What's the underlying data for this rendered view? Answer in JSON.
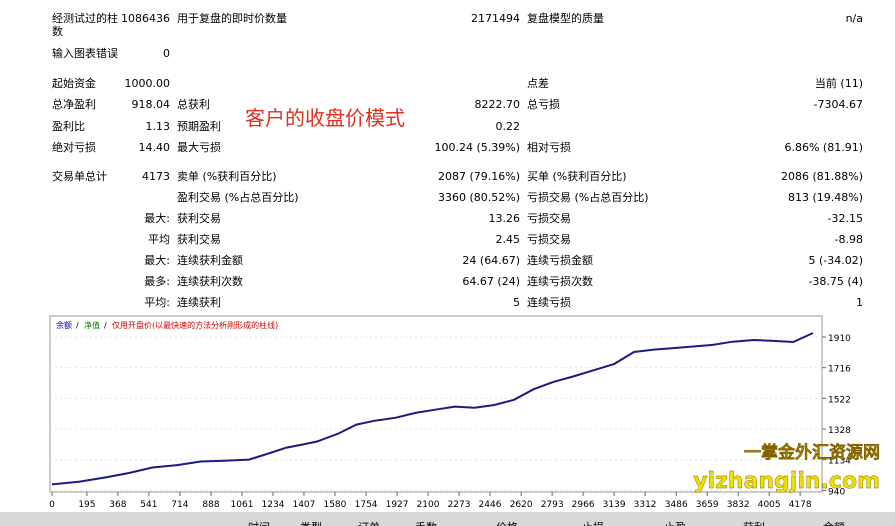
{
  "stats": [
    {
      "l1": "经测试过的柱数",
      "v1": "1086436",
      "l2": "用于复盘的即时价数量",
      "v2": "2171494",
      "l3": "复盘模型的质量",
      "v3": "n/a"
    },
    {
      "l1": "输入图表错误",
      "v1": "0"
    },
    {
      "l1": "起始资金",
      "v1": "1000.00",
      "l3": "点差",
      "v3": "当前 (11)"
    },
    {
      "l1": "总净盈利",
      "v1": "918.04",
      "l2": "总获利",
      "v2": "8222.70",
      "l3": "总亏损",
      "v3": "-7304.67"
    },
    {
      "l1": "盈利比",
      "v1": "1.13",
      "l2": "预期盈利",
      "v2": "0.22"
    },
    {
      "l1": "绝对亏损",
      "v1": "14.40",
      "l2": "最大亏损",
      "v2": "100.24 (5.39%)",
      "l3": "相对亏损",
      "v3": "6.86% (81.91)"
    },
    {
      "l1": "交易单总计",
      "v1": "4173",
      "l2": "卖单 (%获利百分比)",
      "v2": "2087 (79.16%)",
      "l3": "买单 (%获利百分比)",
      "v3": "2086 (81.88%)"
    },
    {
      "l2": "盈利交易 (%占总百分比)",
      "v2": "3360 (80.52%)",
      "l3": "亏损交易 (%占总百分比)",
      "v3": "813 (19.48%)"
    },
    {
      "l1": "最大:",
      "l2": "获利交易",
      "v2": "13.26",
      "l3": "亏损交易",
      "v3": "-32.15"
    },
    {
      "l1": "平均",
      "l2": "获利交易",
      "v2": "2.45",
      "l3": "亏损交易",
      "v3": "-8.98"
    },
    {
      "l1": "最大:",
      "l2": "连续获利金额",
      "v2": "24 (64.67)",
      "l3": "连续亏损金额",
      "v3": "5 (-34.02)"
    },
    {
      "l1": "最多:",
      "l2": "连续获利次数",
      "v2": "64.67 (24)",
      "l3": "连续亏损次数",
      "v3": "-38.75 (4)"
    },
    {
      "l1": "平均:",
      "l2": "连续获利",
      "v2": "5",
      "l3": "连续亏损",
      "v3": "1"
    }
  ],
  "annotation": "客户的收盘价模式",
  "chart_data": {
    "type": "line",
    "legend_items": [
      {
        "text": "余额",
        "color": "#0000c0"
      },
      {
        "text": "净值",
        "color": "#008000"
      },
      {
        "text": "仅用开盘价(以最快速的方法分析刚形成的柱线)",
        "color": "#d00000"
      }
    ],
    "x": [
      0,
      150,
      300,
      430,
      560,
      700,
      830,
      960,
      1100,
      1200,
      1310,
      1400,
      1480,
      1600,
      1700,
      1800,
      1920,
      2030,
      2140,
      2250,
      2360,
      2470,
      2580,
      2690,
      2800,
      2910,
      3030,
      3140,
      3250,
      3360,
      3470,
      3580,
      3690,
      3800,
      3920,
      4030,
      4140,
      4250
    ],
    "series": [
      {
        "name": "余额",
        "color": "#1c1c80",
        "values": [
          978,
          995,
          1022,
          1050,
          1085,
          1100,
          1123,
          1128,
          1135,
          1170,
          1211,
          1230,
          1249,
          1300,
          1356,
          1380,
          1400,
          1430,
          1450,
          1470,
          1463,
          1480,
          1513,
          1580,
          1626,
          1660,
          1702,
          1740,
          1815,
          1830,
          1840,
          1850,
          1860,
          1880,
          1891,
          1885,
          1878,
          1935
        ]
      }
    ],
    "xlim": [
      0,
      4300
    ],
    "ylim": [
      930,
      2030
    ],
    "xticks": [
      0,
      195,
      368,
      541,
      714,
      888,
      1061,
      1234,
      1407,
      1580,
      1754,
      1927,
      2100,
      2273,
      2446,
      2620,
      2793,
      2966,
      3139,
      3312,
      3486,
      3659,
      3832,
      4005,
      4178
    ],
    "yticks": [
      940,
      1134,
      1328,
      1522,
      1716,
      1910
    ],
    "grid": true
  },
  "watermark": {
    "title": "一掌金外汇资源网",
    "url": "yizhangjin.com"
  },
  "table_header": [
    "时间",
    "类型",
    "订单",
    "手数",
    "价格",
    "止损",
    "止盈",
    "获利",
    "余额"
  ]
}
